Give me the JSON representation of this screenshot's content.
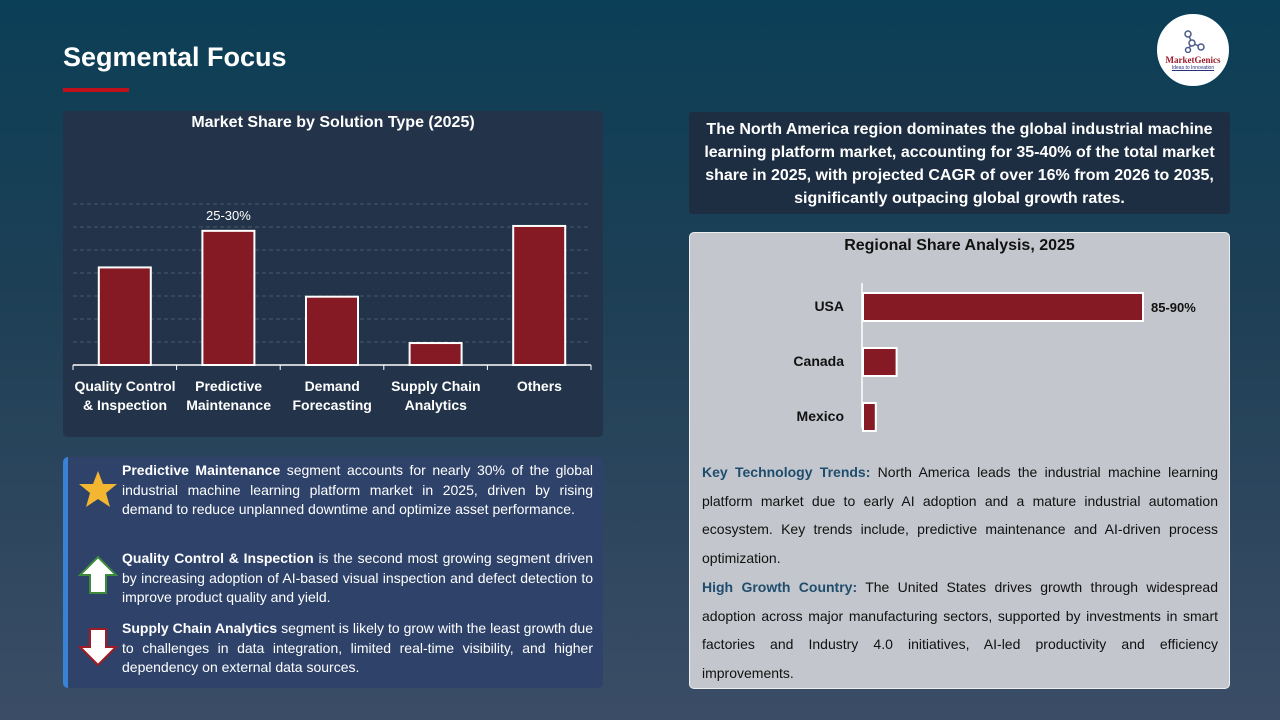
{
  "header": {
    "title": "Segmental Focus",
    "logo_text": "MarketGenics",
    "logo_tagline": "Ideas to Innovation"
  },
  "chart_data": [
    {
      "type": "bar",
      "title": "Market Share by Solution Type (2025)",
      "categories": [
        "Quality Control & Inspection",
        "Predictive Maintenance",
        "Demand Forecasting",
        "Supply Chain Analytics",
        "Others"
      ],
      "values": [
        20,
        27.5,
        14,
        4.5,
        28.5
      ],
      "data_labels": [
        "",
        "25-30%",
        "",
        "",
        ""
      ],
      "ylim": [
        0,
        33
      ],
      "grid": true,
      "bar_color": "#861a24"
    },
    {
      "type": "bar",
      "orientation": "horizontal",
      "title": "Regional Share Analysis, 2025",
      "categories": [
        "USA",
        "Canada",
        "Mexico"
      ],
      "values": [
        87.5,
        10.5,
        4
      ],
      "data_labels": [
        "85-90%",
        "",
        ""
      ],
      "xlim": [
        0,
        100
      ],
      "bar_color": "#861a24"
    }
  ],
  "insights": [
    {
      "icon": "star-icon",
      "bold": "Predictive Maintenance",
      "text": " segment accounts for nearly 30% of the global industrial machine learning platform market in 2025, driven by rising demand to reduce unplanned downtime and optimize asset performance."
    },
    {
      "icon": "arrow-up-icon",
      "bold": "Quality Control & Inspection",
      "text": " is the second most growing segment driven by increasing adoption of AI-based visual inspection and defect detection to improve product quality and yield."
    },
    {
      "icon": "arrow-down-icon",
      "bold": "Supply Chain Analytics",
      "text": " segment is likely to grow with the least growth due to challenges in data integration, limited real-time visibility, and higher dependency on external data sources."
    }
  ],
  "summary": "The North America region dominates the global industrial machine learning platform market, accounting for 35-40% of the total market share in 2025, with projected CAGR of over 16% from 2026 to 2035, significantly outpacing global growth rates.",
  "trends": {
    "k1": "Key Technology Trends:",
    "t1": " North America leads the industrial machine learning platform market due to early AI adoption and a mature industrial automation ecosystem. Key trends include, predictive maintenance and AI-driven process optimization.",
    "k2": "High Growth Country:",
    "t2": " The United States drives growth through widespread adoption across major manufacturing sectors, supported by investments in smart factories and Industry 4.0 initiatives, AI-led productivity and efficiency improvements."
  }
}
